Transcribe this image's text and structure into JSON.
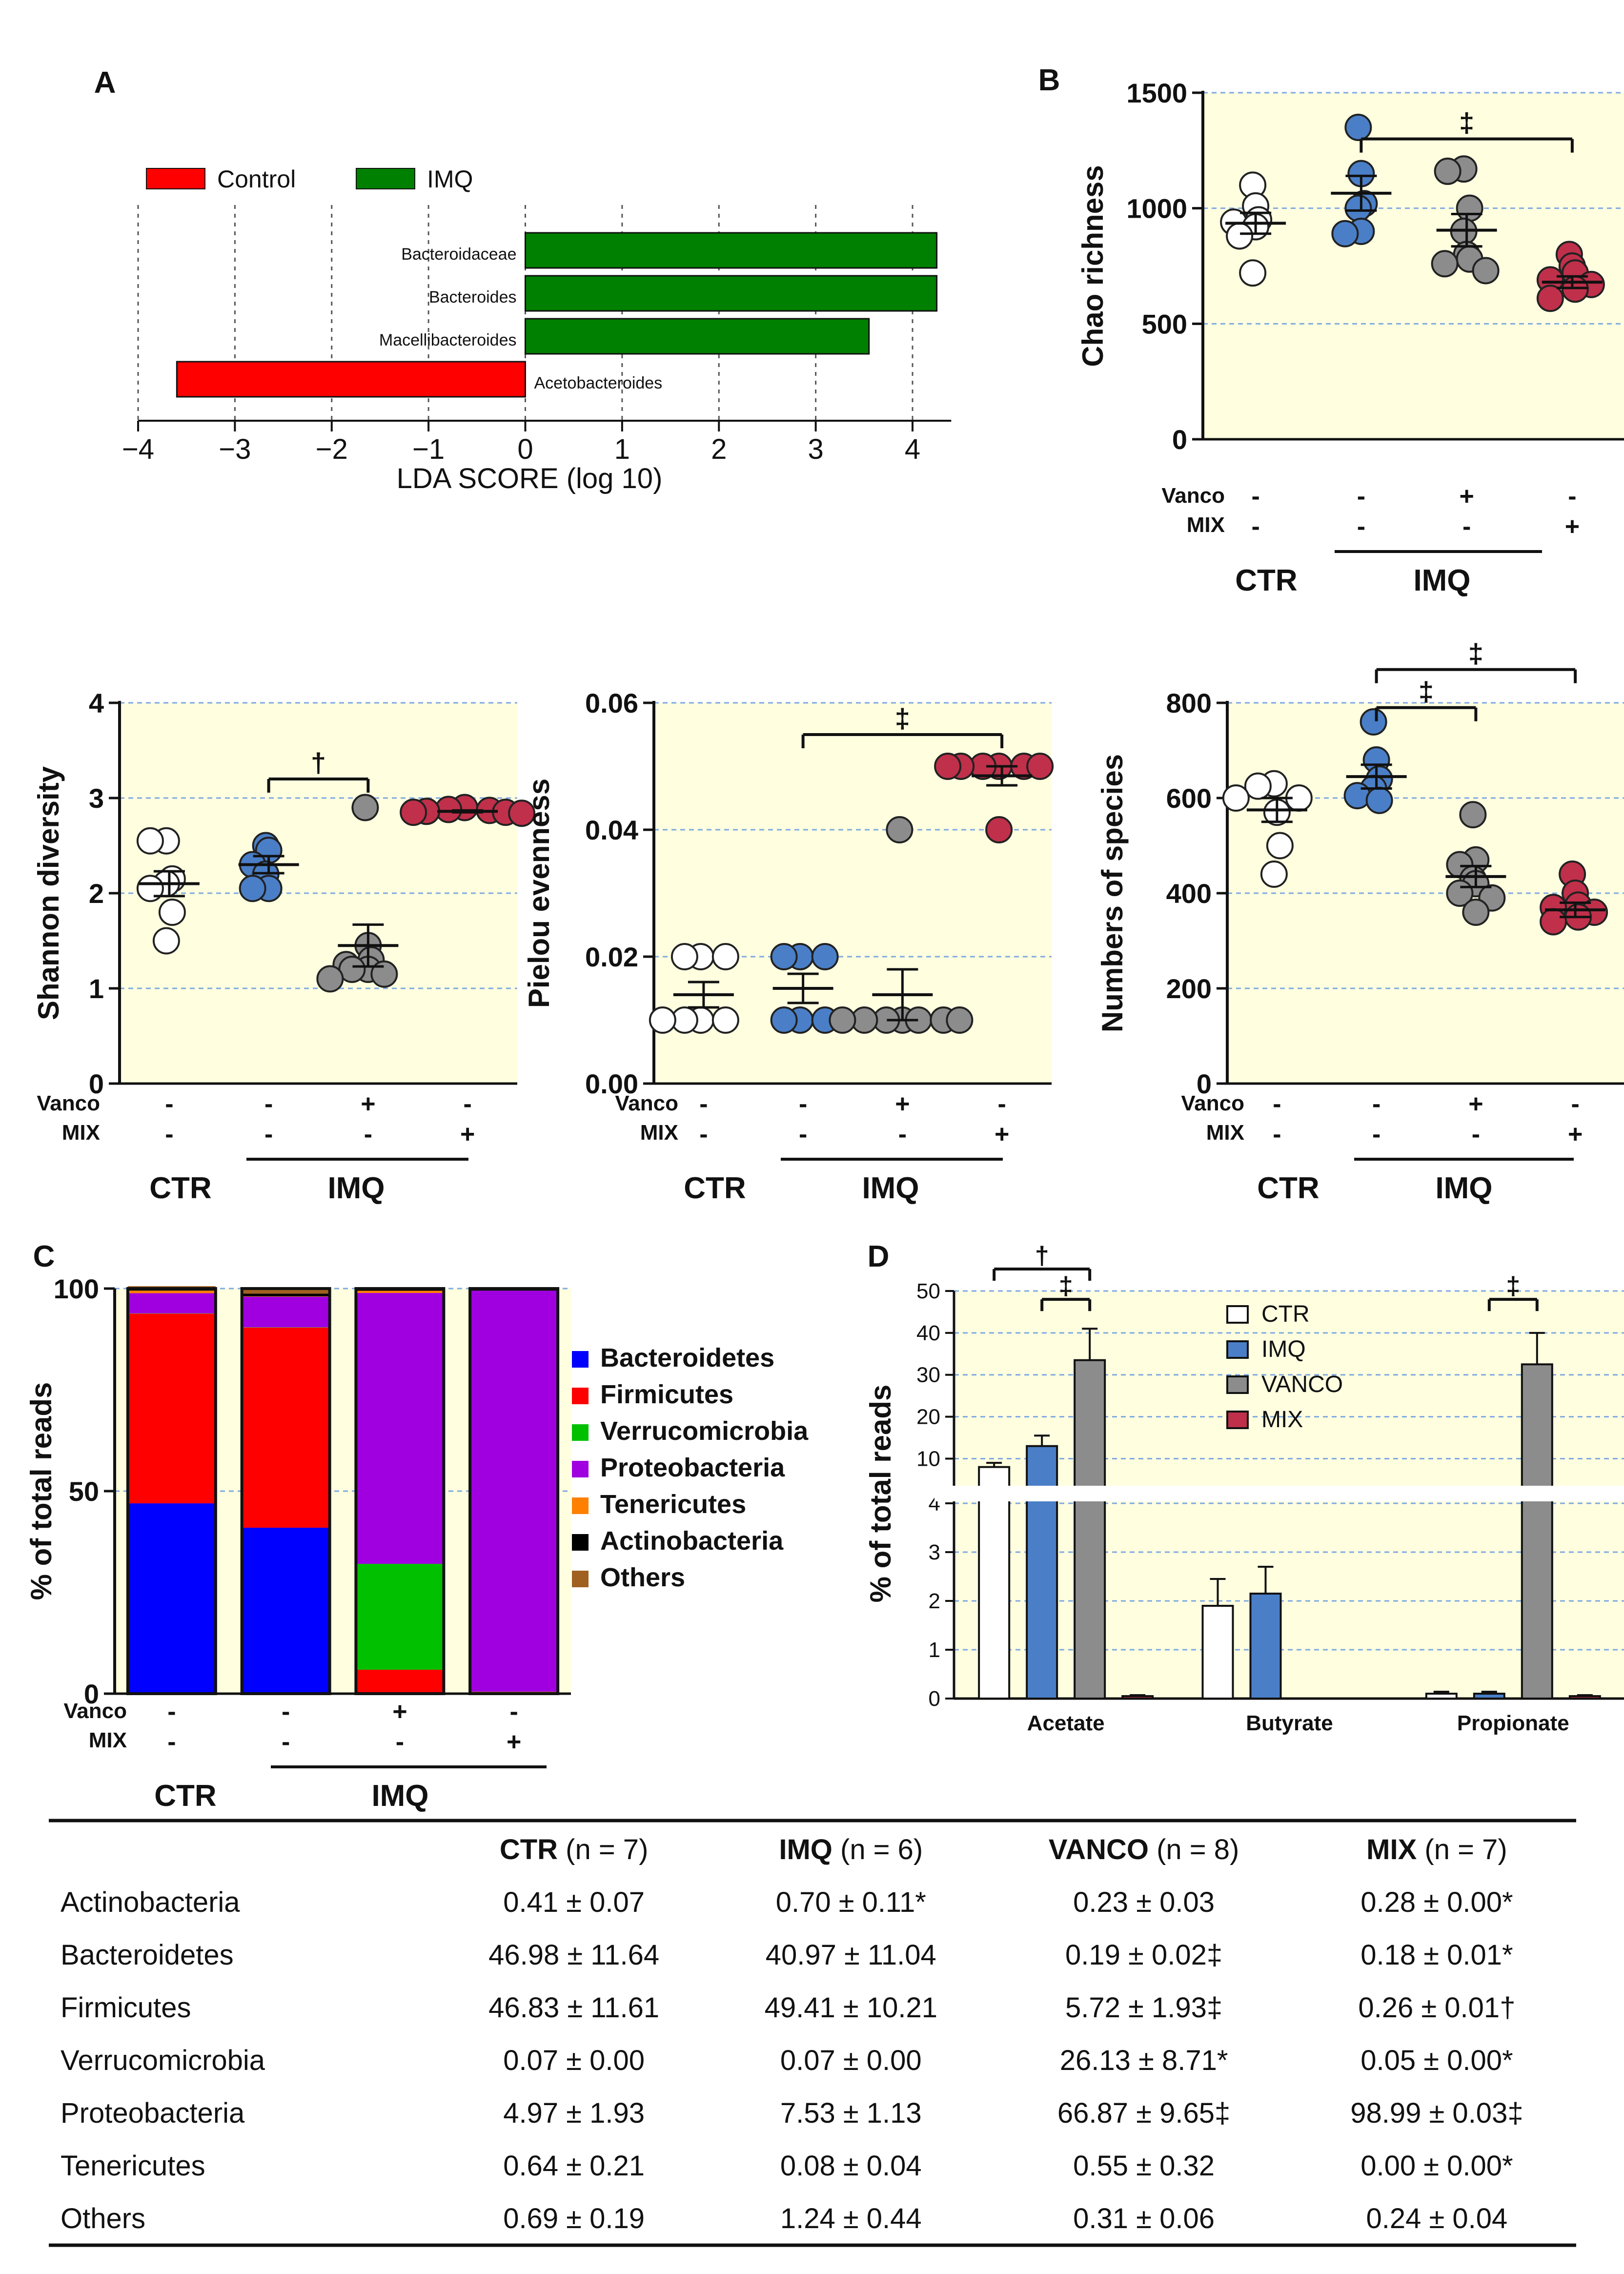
{
  "panelA": {
    "label": "A",
    "legend": [
      {
        "name": "Control",
        "color": "#ff0000"
      },
      {
        "name": "IMQ",
        "color": "#008000"
      }
    ],
    "xlabel": "LDA SCORE (log 10)",
    "xticks": [
      "−4",
      "−3",
      "−2",
      "−1",
      "0",
      "1",
      "2",
      "3",
      "4"
    ]
  },
  "panelB": {
    "label": "B",
    "ylabel_chao": "Chao richness",
    "ylabel_shannon": "Shannon diversity",
    "ylabel_pielou": "Pielou evenness",
    "ylabel_species": "Numbers of species",
    "yticks_chao": [
      "0",
      "500",
      "1000",
      "1500"
    ],
    "yticks_shannon": [
      "0",
      "1",
      "2",
      "3",
      "4"
    ],
    "yticks_pielou": [
      "0.00",
      "0.02",
      "0.04",
      "0.06"
    ],
    "yticks_species": [
      "0",
      "200",
      "400",
      "600",
      "800"
    ],
    "sig_dagger": "†",
    "sig_ddagger": "‡"
  },
  "groups": {
    "vanco_label": "Vanco",
    "mix_label": "MIX",
    "ctr": "CTR",
    "imq": "IMQ",
    "vanco_signs": [
      "-",
      "-",
      "+",
      "-"
    ],
    "mix_signs": [
      "-",
      "-",
      "-",
      "+"
    ]
  },
  "panelC": {
    "label": "C",
    "ylabel": "% of total reads",
    "yticks": [
      "0",
      "50",
      "100"
    ],
    "legend": [
      {
        "name": "Bacteroidetes",
        "color": "#0000ff"
      },
      {
        "name": "Firmicutes",
        "color": "#ff0000"
      },
      {
        "name": "Verrucomicrobia",
        "color": "#00c000"
      },
      {
        "name": "Proteobacteria",
        "color": "#a000e0"
      },
      {
        "name": "Tenericutes",
        "color": "#ff8000"
      },
      {
        "name": "Actinobacteria",
        "color": "#000000"
      },
      {
        "name": "Others",
        "color": "#a06020"
      }
    ]
  },
  "panelD": {
    "label": "D",
    "ylabel": "% of total reads",
    "yticks_low": [
      "0",
      "1",
      "2",
      "3",
      "4"
    ],
    "yticks_high": [
      "10",
      "20",
      "30",
      "40",
      "50"
    ],
    "legend": [
      {
        "name": "CTR",
        "color": "#ffffff"
      },
      {
        "name": "IMQ",
        "color": "#4a7fc8"
      },
      {
        "name": "VANCO",
        "color": "#8c8c8c"
      },
      {
        "name": "MIX",
        "color": "#c0304a"
      }
    ]
  },
  "chart_data": [
    {
      "type": "bar",
      "id": "lda",
      "orientation": "horizontal",
      "xlabel": "LDA SCORE (log 10)",
      "xlim": [
        -4,
        4.4
      ],
      "categories": [
        "Bacteroidaceae",
        "Bacteroides",
        "Macellibacteroides",
        "Acetobacteroides"
      ],
      "values": [
        4.25,
        4.25,
        3.55,
        -3.6
      ],
      "groups": [
        "IMQ",
        "IMQ",
        "IMQ",
        "Control"
      ]
    },
    {
      "type": "scatter",
      "id": "chao",
      "ylabel": "Chao richness",
      "ylim": [
        0,
        1500
      ],
      "categories": [
        "CTR",
        "IMQ",
        "VANCO",
        "MIX"
      ],
      "points": [
        [
          1100,
          1010,
          950,
          940,
          920,
          880,
          720
        ],
        [
          1350,
          1150,
          1020,
          1000,
          900,
          890
        ],
        [
          1170,
          1160,
          1000,
          900,
          800,
          780,
          760,
          730
        ],
        [
          800,
          750,
          720,
          690,
          670,
          650,
          610
        ]
      ],
      "mean": [
        935,
        1065,
        905,
        680
      ],
      "sem": [
        45,
        75,
        70,
        25
      ],
      "sig": [
        {
          "from": 1,
          "to": 3,
          "mark": "‡",
          "y": 1300
        }
      ]
    },
    {
      "type": "scatter",
      "id": "shannon",
      "ylabel": "Shannon diversity",
      "ylim": [
        0,
        4
      ],
      "categories": [
        "CTR",
        "IMQ",
        "VANCO",
        "MIX"
      ],
      "points": [
        [
          2.55,
          2.55,
          2.15,
          2.1,
          2.05,
          1.8,
          1.5
        ],
        [
          2.5,
          2.45,
          2.3,
          2.2,
          2.05,
          2.05
        ],
        [
          2.9,
          1.45,
          1.3,
          1.25,
          1.2,
          1.2,
          1.15,
          1.1
        ],
        [
          2.9,
          2.88,
          2.87,
          2.86,
          2.85,
          2.85,
          2.84
        ]
      ],
      "mean": [
        2.1,
        2.3,
        1.45,
        2.86
      ],
      "sem": [
        0.13,
        0.09,
        0.22,
        0.01
      ],
      "sig": [
        {
          "from": 1,
          "to": 2,
          "mark": "†",
          "y": 3.2
        }
      ]
    },
    {
      "type": "scatter",
      "id": "pielou",
      "ylabel": "Pielou evenness",
      "ylim": [
        0,
        0.06
      ],
      "categories": [
        "CTR",
        "IMQ",
        "VANCO",
        "MIX"
      ],
      "points": [
        [
          0.02,
          0.02,
          0.02,
          0.01,
          0.01,
          0.01,
          0.01
        ],
        [
          0.02,
          0.02,
          0.02,
          0.01,
          0.01,
          0.01
        ],
        [
          0.04,
          0.01,
          0.01,
          0.01,
          0.01,
          0.01,
          0.01,
          0.01
        ],
        [
          0.05,
          0.05,
          0.05,
          0.05,
          0.05,
          0.05,
          0.04
        ]
      ],
      "mean": [
        0.014,
        0.015,
        0.014,
        0.0485
      ],
      "sem": [
        0.002,
        0.0023,
        0.004,
        0.0015
      ],
      "sig": [
        {
          "from": 1,
          "to": 3,
          "mark": "‡",
          "y": 0.055
        }
      ]
    },
    {
      "type": "scatter",
      "id": "species",
      "ylabel": "Numbers of species",
      "ylim": [
        0,
        800
      ],
      "categories": [
        "CTR",
        "IMQ",
        "VANCO",
        "MIX"
      ],
      "points": [
        [
          630,
          625,
          600,
          600,
          570,
          500,
          440
        ],
        [
          760,
          680,
          640,
          620,
          605,
          595
        ],
        [
          565,
          470,
          460,
          430,
          420,
          400,
          390,
          360
        ],
        [
          440,
          400,
          375,
          370,
          360,
          350,
          340
        ]
      ],
      "mean": [
        575,
        645,
        435,
        365
      ],
      "sem": [
        25,
        25,
        22,
        15
      ],
      "sig": [
        {
          "from": 1,
          "to": 2,
          "mark": "‡",
          "y": 790
        },
        {
          "from": 1,
          "to": 3,
          "mark": "‡",
          "y": 870
        }
      ]
    },
    {
      "type": "bar",
      "id": "phyla",
      "stacked": true,
      "ylabel": "% of total reads",
      "ylim": [
        0,
        100
      ],
      "categories": [
        "CTR",
        "IMQ",
        "VANCO",
        "MIX"
      ],
      "series": [
        {
          "name": "Bacteroidetes",
          "values": [
            46.98,
            40.97,
            0.19,
            0.18
          ]
        },
        {
          "name": "Firmicutes",
          "values": [
            46.83,
            49.41,
            5.72,
            0.26
          ]
        },
        {
          "name": "Verrucomicrobia",
          "values": [
            0.07,
            0.07,
            26.13,
            0.05
          ]
        },
        {
          "name": "Proteobacteria",
          "values": [
            4.97,
            7.53,
            66.87,
            98.99
          ]
        },
        {
          "name": "Tenericutes",
          "values": [
            0.64,
            0.08,
            0.55,
            0.0
          ]
        },
        {
          "name": "Actinobacteria",
          "values": [
            0.41,
            0.7,
            0.23,
            0.28
          ]
        },
        {
          "name": "Others",
          "values": [
            0.69,
            1.24,
            0.31,
            0.24
          ]
        }
      ]
    },
    {
      "type": "bar",
      "id": "scfa",
      "ylabel": "% of total reads",
      "ylim_low": [
        0,
        4
      ],
      "ylim_high": [
        4,
        50
      ],
      "categories": [
        "Acetate",
        "Butyrate",
        "Propionate"
      ],
      "series": [
        {
          "name": "CTR",
          "values": [
            8.0,
            1.9,
            0.1
          ],
          "err": [
            1.0,
            0.55,
            0.04
          ]
        },
        {
          "name": "IMQ",
          "values": [
            13.0,
            2.15,
            0.1
          ],
          "err": [
            2.5,
            0.55,
            0.04
          ]
        },
        {
          "name": "VANCO",
          "values": [
            33.5,
            0,
            32.5
          ],
          "err": [
            7.5,
            0,
            7.5
          ]
        },
        {
          "name": "MIX",
          "values": [
            0.05,
            0,
            0.05
          ],
          "err": [
            0.02,
            0,
            0.02
          ]
        }
      ],
      "sig": [
        {
          "cat": 0,
          "from": 1,
          "to": 2,
          "mark": "‡",
          "y": 48
        },
        {
          "cat": 0,
          "from": 0,
          "to": 2,
          "mark": "†",
          "y": 58
        },
        {
          "cat": 2,
          "from": 1,
          "to": 2,
          "mark": "‡",
          "y": 48
        }
      ]
    }
  ],
  "table": {
    "headers": [
      {
        "group": "CTR",
        "n": "(n = 7)"
      },
      {
        "group": "IMQ",
        "n": "(n = 6)"
      },
      {
        "group": "VANCO",
        "n": "(n = 8)"
      },
      {
        "group": "MIX",
        "n": "(n = 7)"
      }
    ],
    "rows": [
      {
        "name": "Actinobacteria",
        "values": [
          "0.41 ± 0.07",
          "0.70 ± 0.11*",
          "0.23 ± 0.03",
          "0.28 ± 0.00*"
        ]
      },
      {
        "name": "Bacteroidetes",
        "values": [
          "46.98 ± 11.64",
          "40.97 ± 11.04",
          "0.19 ± 0.02‡",
          "0.18 ± 0.01*"
        ]
      },
      {
        "name": "Firmicutes",
        "values": [
          "46.83 ± 11.61",
          "49.41 ± 10.21",
          "5.72 ± 1.93‡",
          "0.26 ± 0.01†"
        ]
      },
      {
        "name": "Verrucomicrobia",
        "values": [
          "0.07 ± 0.00",
          "0.07 ± 0.00",
          "26.13 ± 8.71*",
          "0.05 ± 0.00*"
        ]
      },
      {
        "name": "Proteobacteria",
        "values": [
          "4.97 ± 1.93",
          "7.53 ± 1.13",
          "66.87 ± 9.65‡",
          "98.99 ± 0.03‡"
        ]
      },
      {
        "name": "Tenericutes",
        "values": [
          "0.64 ± 0.21",
          "0.08 ± 0.04",
          "0.55 ± 0.32",
          "0.00 ± 0.00*"
        ]
      },
      {
        "name": "Others",
        "values": [
          "0.69 ± 0.19",
          "1.24 ± 0.44",
          "0.31 ± 0.06",
          "0.24 ± 0.04"
        ]
      }
    ]
  }
}
